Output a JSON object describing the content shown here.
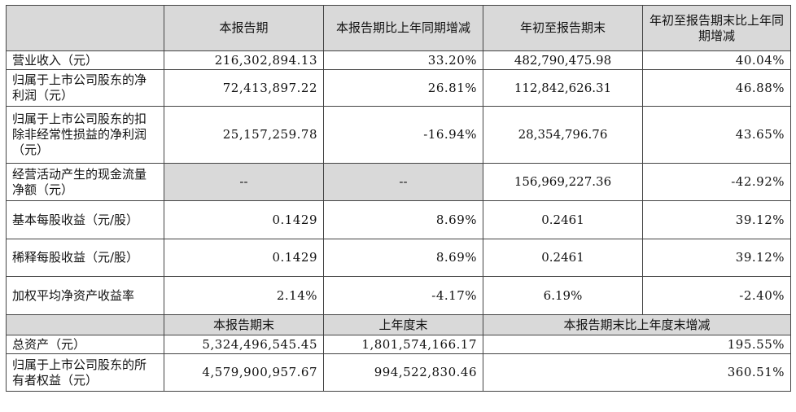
{
  "header1": {
    "c1": "本报告期",
    "c2": "本报告期比上年同期增减",
    "c3": "年初至报告期末",
    "c4": "年初至报告期末比上年同期增减"
  },
  "rows1": [
    {
      "label": "营业收入（元）",
      "v1": "216,302,894.13",
      "v2": "33.20%",
      "v3": "482,790,475.98",
      "v4": "40.04%"
    },
    {
      "label": "归属于上市公司股东的净利润（元）",
      "v1": "72,413,897.22",
      "v2": "26.81%",
      "v3": "112,842,626.31",
      "v4": "46.88%"
    },
    {
      "label": "归属于上市公司股东的扣除非经常性损益的净利润（元）",
      "v1": "25,157,259.78",
      "v2": "-16.94%",
      "v3": "28,354,796.76",
      "v4": "43.65%"
    },
    {
      "label": "经营活动产生的现金流量净额（元）",
      "v1": "--",
      "v2": "--",
      "v3": "156,969,227.36",
      "v4": "-42.92%"
    },
    {
      "label": "基本每股收益（元/股）",
      "v1": "0.1429",
      "v2": "8.69%",
      "v3": "0.2461",
      "v4": "39.12%"
    },
    {
      "label": "稀释每股收益（元/股）",
      "v1": "0.1429",
      "v2": "8.69%",
      "v3": "0.2461",
      "v4": "39.12%"
    },
    {
      "label": "加权平均净资产收益率",
      "v1": "2.14%",
      "v2": "-4.17%",
      "v3": "6.19%",
      "v4": "-2.40%"
    }
  ],
  "header2": {
    "c1": "本报告期末",
    "c2": "上年度末",
    "c3": "本报告期末比上年度末增减"
  },
  "rows2": [
    {
      "label": "总资产（元）",
      "v1": "5,324,496,545.45",
      "v2": "1,801,574,166.17",
      "v3": "195.55%"
    },
    {
      "label": "归属于上市公司股东的所有者权益（元）",
      "v1": "4,579,900,957.67",
      "v2": "994,522,830.46",
      "v3": "360.51%"
    }
  ]
}
